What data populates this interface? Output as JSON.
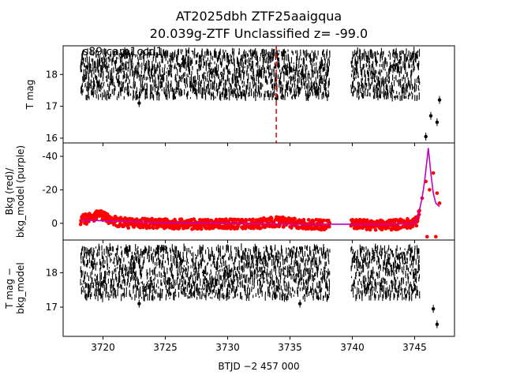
{
  "title_line1": "AT2025dbh  ZTF25aaigqua",
  "title_line2": "20.039g-ZTF Unclassified z= -99.0",
  "xlabel": "BTJD −2 457 000",
  "chart_data": [
    {
      "type": "scatter",
      "panel": "top",
      "ylabel": "T mag",
      "annotation": "s89 cam1ccd1",
      "xlim": [
        3716.8,
        3748.2
      ],
      "ylim": [
        18.9,
        15.85
      ],
      "y_inverted": true,
      "x_ticks": [
        3720,
        3725,
        3730,
        3735,
        3740,
        3745
      ],
      "y_ticks": [
        16,
        17,
        18
      ],
      "vline_x": 3733.9,
      "vline_color": "#e00000",
      "point_color": "#000000",
      "segments": [
        {
          "x_start": 3718.2,
          "x_end": 3738.2,
          "mag_center": 18.0,
          "mag_spread": 0.75
        },
        {
          "x_start": 3739.9,
          "x_end": 3745.4,
          "mag_center": 18.0,
          "mag_spread": 0.75
        }
      ],
      "outliers": [
        [
          3722.9,
          17.1
        ],
        [
          3733.9,
          17.25
        ],
        [
          3745.9,
          16.05
        ],
        [
          3746.3,
          16.7
        ],
        [
          3746.8,
          16.5
        ],
        [
          3747.0,
          17.2
        ]
      ]
    },
    {
      "type": "line",
      "panel": "middle",
      "ylabel": "Bkg (red)/ bkg_model (purple)",
      "xlim": [
        3716.8,
        3748.2
      ],
      "ylim": [
        -48,
        10
      ],
      "x_ticks": [
        3720,
        3725,
        3730,
        3735,
        3740,
        3745
      ],
      "y_ticks": [
        0,
        -20,
        -40
      ],
      "series": [
        {
          "name": "Bkg (red)",
          "color": "#ff0000",
          "style": "points",
          "points": [
            [
              3718.2,
              -2
            ],
            [
              3719,
              -3
            ],
            [
              3719.5,
              -5
            ],
            [
              3720,
              -4
            ],
            [
              3721,
              -1
            ],
            [
              3722,
              0
            ],
            [
              3724,
              0
            ],
            [
              3726,
              0.5
            ],
            [
              3728,
              0.5
            ],
            [
              3730,
              0.5
            ],
            [
              3732,
              0.5
            ],
            [
              3734,
              -1
            ],
            [
              3736,
              0.5
            ],
            [
              3738,
              1
            ],
            [
              3739.9,
              0
            ],
            [
              3741,
              1
            ],
            [
              3743,
              1
            ],
            [
              3745,
              0
            ],
            [
              3745.3,
              -3
            ],
            [
              3745.6,
              -15
            ],
            [
              3745.9,
              -25
            ],
            [
              3746.2,
              -20
            ],
            [
              3746.5,
              -30
            ],
            [
              3746.8,
              -18
            ],
            [
              3747,
              -12
            ],
            [
              3746.0,
              8
            ],
            [
              3746.7,
              8
            ]
          ]
        },
        {
          "name": "bkg_model (purple)",
          "color": "#c000c0",
          "style": "line",
          "points": [
            [
              3718.2,
              -2
            ],
            [
              3721,
              -1.2
            ],
            [
              3724,
              -0.5
            ],
            [
              3728,
              0
            ],
            [
              3732,
              0.3
            ],
            [
              3736,
              0.5
            ],
            [
              3738.2,
              0.5
            ],
            [
              3739.9,
              0.5
            ],
            [
              3742,
              0.6
            ],
            [
              3745,
              0.3
            ],
            [
              3745.3,
              -5
            ],
            [
              3745.6,
              -15
            ],
            [
              3745.8,
              -25
            ],
            [
              3746.0,
              -38
            ],
            [
              3746.1,
              -45
            ],
            [
              3746.3,
              -30
            ],
            [
              3746.5,
              -18
            ],
            [
              3746.7,
              -12
            ],
            [
              3747.0,
              -10
            ]
          ]
        }
      ]
    },
    {
      "type": "scatter",
      "panel": "bottom",
      "ylabel": "T mag − bkg_model",
      "xlim": [
        3716.8,
        3748.2
      ],
      "ylim": [
        18.95,
        16.15
      ],
      "y_inverted": true,
      "x_ticks": [
        3720,
        3725,
        3730,
        3735,
        3740,
        3745
      ],
      "x_tick_labels": [
        "3720",
        "3725",
        "3730",
        "3735",
        "3740",
        "3745"
      ],
      "y_ticks": [
        17,
        18
      ],
      "point_color": "#000000",
      "segments": [
        {
          "x_start": 3718.2,
          "x_end": 3738.2,
          "mag_center": 18.0,
          "mag_spread": 0.75
        },
        {
          "x_start": 3739.9,
          "x_end": 3745.4,
          "mag_center": 18.0,
          "mag_spread": 0.75
        }
      ],
      "outliers": [
        [
          3722.9,
          17.1
        ],
        [
          3735.8,
          17.1
        ],
        [
          3746.5,
          16.95
        ],
        [
          3746.8,
          16.5
        ]
      ]
    }
  ]
}
